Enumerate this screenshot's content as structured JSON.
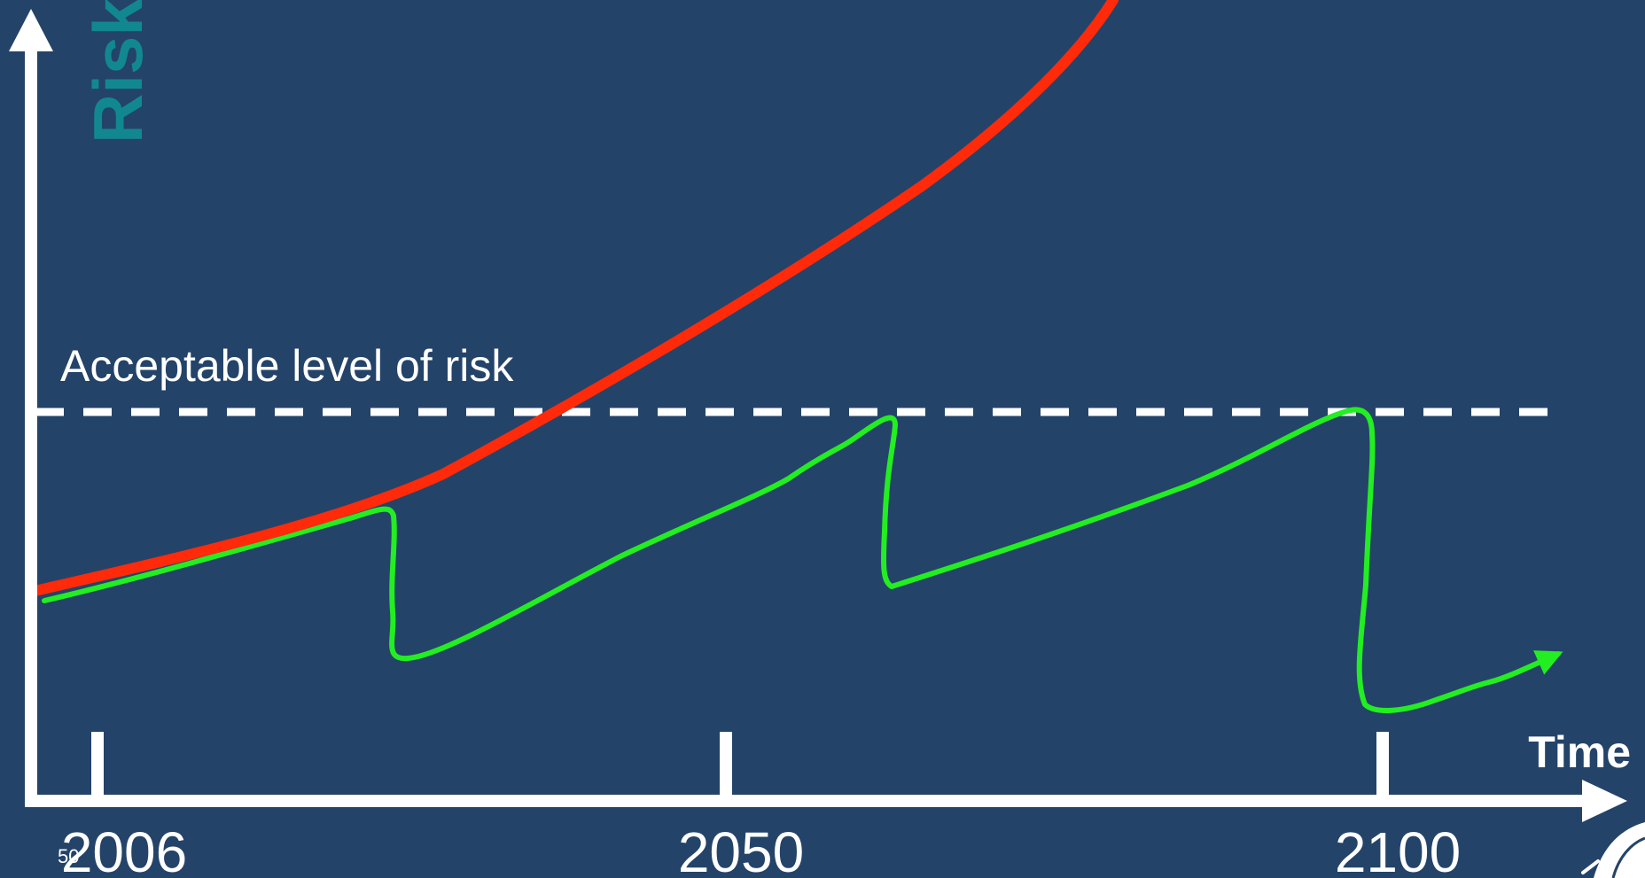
{
  "diagram": {
    "y_axis_title": "Risk",
    "x_axis_title": "Time",
    "threshold_label": "Acceptable level of risk",
    "slide_number": "50",
    "ticks": [
      "2006",
      "2050",
      "2100"
    ]
  },
  "colors": {
    "background": "#244369",
    "axis": "#ffffff",
    "y_title": "#11888f",
    "unmanaged_curve": "#ff2a0a",
    "managed_curve": "#22ee22",
    "threshold_line": "#ffffff"
  },
  "chart_data": {
    "type": "line",
    "xlabel": "Time",
    "ylabel": "Risk",
    "x_ticks": [
      2006,
      2050,
      2100
    ],
    "threshold": "Acceptable level of risk",
    "series": []
  },
  "icons": {
    "corner_logo": "feather-logo-icon"
  }
}
